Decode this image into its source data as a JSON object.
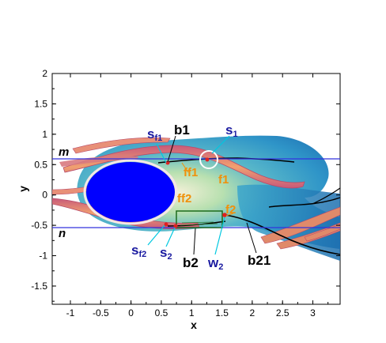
{
  "chart_data": {
    "type": "contour",
    "xlabel": "x",
    "ylabel": "y",
    "xlim": [
      -1.3,
      3.45
    ],
    "ylim": [
      -1.8,
      2.0
    ],
    "x_ticks": [
      "-1",
      "-0.5",
      "0",
      "0.5",
      "1",
      "1.5",
      "2",
      "2.5",
      "3"
    ],
    "y_ticks": [
      "2",
      "1.5",
      "1",
      "0.5",
      "0",
      "-0.5",
      "-1",
      "-1.5"
    ],
    "body": {
      "center": [
        0,
        0
      ],
      "radius_x": 0.62,
      "radius_y": 0.5,
      "color": "#0000ff"
    },
    "lines": [
      {
        "name": "m",
        "y": 0.57,
        "color": "#3333dd"
      },
      {
        "name": "n",
        "y": -0.56,
        "color": "#3333dd"
      }
    ],
    "box": {
      "x": [
        0.75,
        1.5
      ],
      "y": [
        -0.57,
        -0.29
      ],
      "color": "#1c6b1c"
    },
    "circle_marker": {
      "center": [
        1.28,
        0.57
      ],
      "radius": 0.12,
      "color": "#ffffff"
    },
    "annotations": {
      "b1": "b1",
      "s1_main": "s",
      "s1_sub": "1",
      "sf1_main": "s",
      "sf1_sub": "f1",
      "ff1": "ff1",
      "f1": "f1",
      "ff2": "ff2",
      "f2": "f2",
      "sf2_main": "s",
      "sf2_sub": "f2",
      "s2_main": "s",
      "s2_sub": "2",
      "b2": "b2",
      "w2_main": "w",
      "w2_sub": "2",
      "b21": "b21",
      "m": "m",
      "n": "n"
    },
    "colors": {
      "vortex_outer": "#2a8fc8",
      "vortex_mid": "#57b6c9",
      "vortex_inner": "#9fd6b4",
      "shear_layer": "#e08a6a",
      "shear_edge": "#c0506a",
      "label_orange": "#f0900a",
      "label_blue": "#1a1aa0",
      "cyan_pointer": "#00c8e0"
    }
  }
}
